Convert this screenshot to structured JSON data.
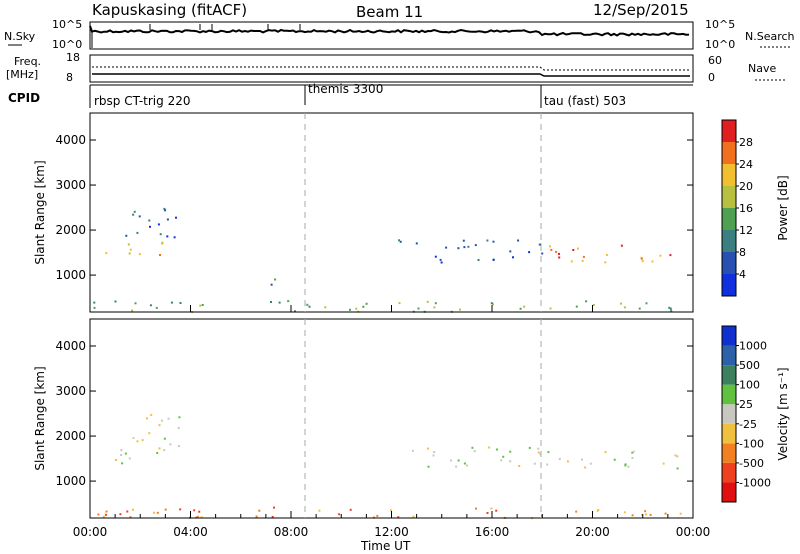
{
  "header": {
    "station": "Kapuskasing (fitACF)",
    "beam": "Beam 11",
    "date": "12/Sep/2015"
  },
  "top_panels": {
    "nsky_label": "N.Sky",
    "nsky_ticks": [
      "10^5",
      "10^0"
    ],
    "nsearch_label": "N.Search",
    "nsearch_ticks": [
      "10^5",
      "10^0"
    ],
    "freq_label_line1": "Freq.",
    "freq_label_line2": "[MHz]",
    "freq_ticks": [
      "18",
      "8"
    ],
    "nave_label": "Nave",
    "nave_ticks": [
      "60",
      "0"
    ],
    "cpid_label": "CPID",
    "cpid_segments": [
      {
        "name": "rbsp CT-trig 220",
        "start_h": 0
      },
      {
        "name": "themis 3300",
        "start_h": 8.5
      },
      {
        "name": "tau (fast) 503",
        "start_h": 18
      }
    ]
  },
  "chart_data": [
    {
      "type": "heatmap",
      "panel": "power",
      "ylabel": "Slant Range [km]",
      "xlabel": "",
      "x_range_h": [
        0,
        24
      ],
      "ylim": [
        180,
        4600
      ],
      "y_ticks": [
        1000,
        2000,
        3000,
        4000
      ],
      "colorbar": {
        "label": "Power [dB]",
        "ticks": [
          "4",
          "8",
          "12",
          "16",
          "20",
          "24",
          "28"
        ],
        "colors": [
          "#1030e0",
          "#2850b0",
          "#3c7f80",
          "#4fa050",
          "#b8c040",
          "#f0c030",
          "#f07020",
          "#e02020"
        ]
      },
      "scatter_regions": [
        {
          "t": [
            0.5,
            3.0
          ],
          "r": [
            1350,
            1750
          ],
          "level": 5
        },
        {
          "t": [
            1.2,
            3.6
          ],
          "r": [
            1700,
            2500
          ],
          "level": 1
        },
        {
          "t": [
            7.0,
            8.0
          ],
          "r": [
            800,
            1000
          ],
          "level": 2
        },
        {
          "t": [
            12.0,
            18.0
          ],
          "r": [
            1300,
            1800
          ],
          "level": 1
        },
        {
          "t": [
            18.0,
            24.0
          ],
          "r": [
            1300,
            1700
          ],
          "level": 6
        },
        {
          "t": [
            0.0,
            24.0
          ],
          "r": [
            200,
            450
          ],
          "level": 3
        }
      ]
    },
    {
      "type": "heatmap",
      "panel": "velocity",
      "ylabel": "Slant Range [km]",
      "xlabel": "Time UT",
      "x_range_h": [
        0,
        24
      ],
      "ylim": [
        180,
        4600
      ],
      "y_ticks": [
        1000,
        2000,
        3000,
        4000
      ],
      "x_tick_labels": [
        "00:00",
        "04:00",
        "08:00",
        "12:00",
        "16:00",
        "20:00",
        "00:00"
      ],
      "colorbar": {
        "label": "Velocity [m s⁻¹]",
        "ticks": [
          "1000",
          "500",
          "100",
          "25",
          "-25",
          "-100",
          "-500",
          "-1000"
        ],
        "colors": [
          "#1030d0",
          "#2c60a8",
          "#3c8060",
          "#60c040",
          "#c8c8c0",
          "#f0c040",
          "#f08020",
          "#f04020",
          "#e01010"
        ]
      },
      "scatter_regions": [
        {
          "t": [
            0.5,
            3.0
          ],
          "r": [
            1350,
            1750
          ],
          "level": 4
        },
        {
          "t": [
            1.2,
            3.6
          ],
          "r": [
            1700,
            2500
          ],
          "level": 4
        },
        {
          "t": [
            12.0,
            18.0
          ],
          "r": [
            1300,
            1800
          ],
          "level": 4
        },
        {
          "t": [
            18.0,
            24.0
          ],
          "r": [
            1300,
            1700
          ],
          "level": 4
        },
        {
          "t": [
            0.0,
            24.0
          ],
          "r": [
            200,
            450
          ],
          "level": 6
        }
      ]
    }
  ]
}
